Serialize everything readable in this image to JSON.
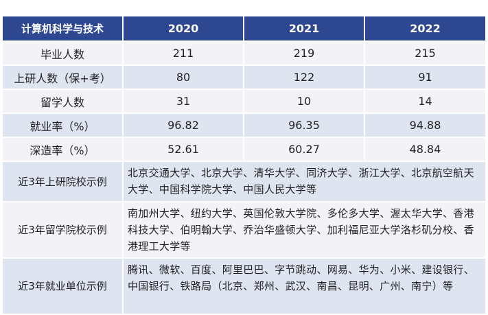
{
  "header": {
    "corner": "计算机科学与技术",
    "years": [
      "2020",
      "2021",
      "2022"
    ]
  },
  "rows": [
    {
      "label": "毕业人数",
      "values": [
        "211",
        "219",
        "215"
      ]
    },
    {
      "label": "上研人数（保+考）",
      "values": [
        "80",
        "122",
        "91"
      ]
    },
    {
      "label": "留学人数",
      "values": [
        "31",
        "10",
        "14"
      ]
    },
    {
      "label": "就业率（%）",
      "values": [
        "96.82",
        "96.35",
        "94.88"
      ]
    },
    {
      "label": "深造率（%）",
      "values": [
        "52.61",
        "60.27",
        "48.84"
      ]
    }
  ],
  "examples": [
    {
      "label": "近3年上研院校示例",
      "text": "北京交通大学、北京大学、清华大学、同济大学、浙江大学、北京航空航天大学、中国科学院大学、中国人民大学等"
    },
    {
      "label": "近3年留学院校示例",
      "text": "南加州大学、纽约大学、英国伦敦大学院、多伦多大学、渥太华大学、香港科技大学、伯明翰大学、乔治华盛顿大学、加利福尼亚大学洛杉矶分校、香港理工大学等"
    },
    {
      "label": "近3年就业单位示例",
      "text": "腾讯、微软、百度、阿里巴巴、字节跳动、网易、华为、小米、建设银行、中国银行、铁路局（北京、郑州、武汉、南昌、昆明、广州、南宁）等"
    }
  ],
  "colors": {
    "header_bg": "#2d4791",
    "row_light": "#f3f3f7",
    "row_blue": "#dfe4f1"
  }
}
